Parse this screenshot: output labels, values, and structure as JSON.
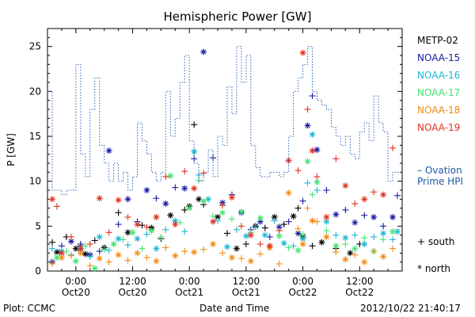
{
  "chart_data": {
    "type": "scatter",
    "title": "Hemispheric Power [GW]",
    "ylabel": "P [GW]",
    "xlabel": "Date and Time",
    "ylim": [
      0,
      27
    ],
    "yticks": [
      0,
      5,
      10,
      15,
      20,
      25
    ],
    "xlim_hours": [
      -6,
      69
    ],
    "xticks": [
      {
        "hour": 0,
        "time": "0:00",
        "date": "Oct20"
      },
      {
        "hour": 12,
        "time": "12:00",
        "date": "Oct20"
      },
      {
        "hour": 24,
        "time": "0:00",
        "date": "Oct21"
      },
      {
        "hour": 36,
        "time": "12:00",
        "date": "Oct21"
      },
      {
        "hour": 48,
        "time": "0:00",
        "date": "Oct22"
      },
      {
        "hour": 60,
        "time": "12:00",
        "date": "Oct22"
      }
    ],
    "series": [
      {
        "name": "METP-02",
        "color": "#000000",
        "points": [
          [
            -5,
            3.2
          ],
          [
            -4,
            2.1
          ],
          [
            -2,
            3.8
          ],
          [
            0,
            2.5
          ],
          [
            1,
            2.8
          ],
          [
            2,
            1.9
          ],
          [
            4,
            3.4
          ],
          [
            6,
            2.6
          ],
          [
            9,
            6.5
          ],
          [
            11,
            4.3
          ],
          [
            14,
            5.1
          ],
          [
            16,
            4.8
          ],
          [
            18,
            3.6
          ],
          [
            20,
            6.2
          ],
          [
            23,
            6.8
          ],
          [
            24,
            7.2
          ],
          [
            25,
            16.3
          ],
          [
            26,
            8.0
          ],
          [
            27,
            7.4
          ],
          [
            30,
            6.0
          ],
          [
            32,
            4.2
          ],
          [
            34,
            2.5
          ],
          [
            36,
            3.0
          ],
          [
            38,
            5.0
          ],
          [
            40,
            4.8
          ],
          [
            42,
            6.0
          ],
          [
            44,
            5.2
          ],
          [
            46,
            6.1
          ],
          [
            47,
            7.0
          ],
          [
            48,
            3.8
          ],
          [
            50,
            2.8
          ],
          [
            52,
            3.2
          ],
          [
            55,
            2.5
          ],
          [
            58,
            2.0
          ],
          [
            60,
            3.0
          ]
        ]
      },
      {
        "name": "NOAA-15",
        "color": "#1a1aa6",
        "points": [
          [
            -5,
            1.0
          ],
          [
            -3,
            2.8
          ],
          [
            -1,
            3.3
          ],
          [
            1,
            3.0
          ],
          [
            3,
            1.8
          ],
          [
            5,
            2.2
          ],
          [
            7,
            13.4
          ],
          [
            9,
            5.2
          ],
          [
            11,
            8.0
          ],
          [
            13,
            5.5
          ],
          [
            15,
            9.0
          ],
          [
            17,
            8.1
          ],
          [
            19,
            7.5
          ],
          [
            21,
            9.3
          ],
          [
            23,
            9.2
          ],
          [
            25,
            12.5
          ],
          [
            27,
            24.4
          ],
          [
            29,
            12.6
          ],
          [
            31,
            7.6
          ],
          [
            33,
            8.5
          ],
          [
            35,
            6.5
          ],
          [
            37,
            4.6
          ],
          [
            39,
            5.5
          ],
          [
            41,
            3.8
          ],
          [
            43,
            4.9
          ],
          [
            45,
            5.5
          ],
          [
            47,
            4.2
          ],
          [
            48,
            7.8
          ],
          [
            49,
            16.2
          ],
          [
            50,
            19.5
          ],
          [
            51,
            13.5
          ],
          [
            53,
            9.0
          ],
          [
            55,
            6.3
          ],
          [
            57,
            6.8
          ],
          [
            59,
            5.4
          ],
          [
            61,
            6.2
          ],
          [
            63,
            6.0
          ],
          [
            65,
            5.0
          ],
          [
            67,
            6.0
          ],
          [
            68,
            8.4
          ]
        ]
      },
      {
        "name": "NOAA-16",
        "color": "#19b7d6",
        "points": [
          [
            -5,
            2.5
          ],
          [
            -3,
            2.2
          ],
          [
            -1,
            1.8
          ],
          [
            1,
            2.4
          ],
          [
            3,
            1.6
          ],
          [
            5,
            3.8
          ],
          [
            7,
            2.3
          ],
          [
            9,
            3.6
          ],
          [
            11,
            2.9
          ],
          [
            13,
            3.6
          ],
          [
            15,
            4.1
          ],
          [
            17,
            2.5
          ],
          [
            19,
            4.6
          ],
          [
            21,
            5.6
          ],
          [
            23,
            4.4
          ],
          [
            25,
            13.3
          ],
          [
            26,
            10.7
          ],
          [
            28,
            8.0
          ],
          [
            30,
            5.6
          ],
          [
            32,
            2.7
          ],
          [
            34,
            4.6
          ],
          [
            36,
            3.9
          ],
          [
            38,
            4.9
          ],
          [
            40,
            4.0
          ],
          [
            42,
            5.6
          ],
          [
            44,
            3.1
          ],
          [
            46,
            2.8
          ],
          [
            48,
            3.6
          ],
          [
            49,
            9.8
          ],
          [
            50,
            15.2
          ],
          [
            51,
            9.0
          ],
          [
            53,
            5.5
          ],
          [
            55,
            4.0
          ],
          [
            57,
            3.7
          ],
          [
            59,
            4.0
          ],
          [
            61,
            3.0
          ],
          [
            63,
            3.8
          ],
          [
            65,
            4.2
          ],
          [
            67,
            3.5
          ],
          [
            68,
            4.4
          ]
        ]
      },
      {
        "name": "NOAA-17",
        "color": "#3ee56f",
        "points": [
          [
            -4,
            1.5
          ],
          [
            -2,
            2.2
          ],
          [
            0,
            1.1
          ],
          [
            2,
            2.8
          ],
          [
            4,
            0.3
          ],
          [
            6,
            2.4
          ],
          [
            8,
            3.0
          ],
          [
            10,
            3.5
          ],
          [
            12,
            4.3
          ],
          [
            14,
            2.5
          ],
          [
            16,
            4.5
          ],
          [
            18,
            3.8
          ],
          [
            20,
            10.6
          ],
          [
            22,
            5.4
          ],
          [
            24,
            7.0
          ],
          [
            26,
            10.1
          ],
          [
            27,
            7.8
          ],
          [
            29,
            6.1
          ],
          [
            31,
            6.5
          ],
          [
            33,
            5.8
          ],
          [
            35,
            6.6
          ],
          [
            37,
            4.3
          ],
          [
            39,
            5.9
          ],
          [
            41,
            2.8
          ],
          [
            43,
            3.9
          ],
          [
            45,
            2.6
          ],
          [
            47,
            2.3
          ],
          [
            48,
            4.1
          ],
          [
            49,
            12.2
          ],
          [
            50,
            8.5
          ],
          [
            51,
            9.9
          ],
          [
            53,
            4.5
          ],
          [
            55,
            2.8
          ],
          [
            57,
            3.0
          ],
          [
            59,
            2.5
          ],
          [
            61,
            3.7
          ],
          [
            63,
            2.2
          ],
          [
            65,
            3.5
          ],
          [
            67,
            4.4
          ]
        ]
      },
      {
        "name": "NOAA-18",
        "color": "#f28a12",
        "points": [
          [
            -5,
            0.8
          ],
          [
            -3,
            1.5
          ],
          [
            -1,
            1.7
          ],
          [
            1,
            2.0
          ],
          [
            3,
            0.6
          ],
          [
            5,
            1.4
          ],
          [
            7,
            1.0
          ],
          [
            9,
            1.8
          ],
          [
            11,
            1.2
          ],
          [
            13,
            2.0
          ],
          [
            15,
            1.5
          ],
          [
            17,
            1.1
          ],
          [
            19,
            2.6
          ],
          [
            21,
            1.7
          ],
          [
            23,
            2.2
          ],
          [
            25,
            2.1
          ],
          [
            27,
            2.4
          ],
          [
            29,
            3.0
          ],
          [
            31,
            2.0
          ],
          [
            33,
            1.5
          ],
          [
            35,
            1.4
          ],
          [
            37,
            1.1
          ],
          [
            39,
            1.9
          ],
          [
            41,
            2.6
          ],
          [
            43,
            0.8
          ],
          [
            45,
            8.7
          ],
          [
            47,
            4.7
          ],
          [
            48,
            3.0
          ],
          [
            49,
            7.0
          ],
          [
            50,
            5.6
          ],
          [
            51,
            5.5
          ],
          [
            53,
            3.8
          ],
          [
            55,
            2.1
          ],
          [
            57,
            1.3
          ],
          [
            59,
            1.8
          ],
          [
            61,
            1.0
          ],
          [
            63,
            2.2
          ],
          [
            65,
            1.6
          ],
          [
            67,
            2.5
          ]
        ]
      },
      {
        "name": "NOAA-19",
        "color": "#e0301e",
        "points": [
          [
            -5,
            8.0
          ],
          [
            -4,
            7.2
          ],
          [
            -3,
            2.0
          ],
          [
            -1,
            3.8
          ],
          [
            1,
            2.5
          ],
          [
            3,
            3.0
          ],
          [
            5,
            8.1
          ],
          [
            7,
            4.3
          ],
          [
            9,
            7.9
          ],
          [
            11,
            6.0
          ],
          [
            13,
            5.2
          ],
          [
            15,
            4.9
          ],
          [
            17,
            6.0
          ],
          [
            19,
            10.5
          ],
          [
            21,
            5.2
          ],
          [
            23,
            11.1
          ],
          [
            25,
            9.2
          ],
          [
            27,
            10.9
          ],
          [
            29,
            5.5
          ],
          [
            31,
            7.3
          ],
          [
            33,
            8.2
          ],
          [
            35,
            5.0
          ],
          [
            37,
            4.0
          ],
          [
            39,
            3.0
          ],
          [
            41,
            2.8
          ],
          [
            43,
            4.5
          ],
          [
            45,
            12.3
          ],
          [
            47,
            11.2
          ],
          [
            48,
            24.3
          ],
          [
            49,
            18.0
          ],
          [
            50,
            13.4
          ],
          [
            51,
            10.5
          ],
          [
            53,
            6.0
          ],
          [
            55,
            12.5
          ],
          [
            57,
            9.5
          ],
          [
            59,
            7.5
          ],
          [
            61,
            8.0
          ],
          [
            63,
            8.8
          ],
          [
            65,
            8.5
          ],
          [
            67,
            13.7
          ]
        ]
      },
      {
        "name": "Ovation Prime HPI",
        "color": "#2a62b8",
        "style": "step-dotted",
        "points": [
          [
            -6,
            20.0
          ],
          [
            -5,
            9.0
          ],
          [
            -3,
            8.5
          ],
          [
            -2,
            9.0
          ],
          [
            0,
            23.0
          ],
          [
            1,
            13.0
          ],
          [
            2,
            10.5
          ],
          [
            3,
            18.0
          ],
          [
            4,
            21.5
          ],
          [
            5,
            14.0
          ],
          [
            6,
            12.0
          ],
          [
            7,
            10.0
          ],
          [
            8,
            12.0
          ],
          [
            9,
            10.0
          ],
          [
            10,
            11.0
          ],
          [
            11,
            9.0
          ],
          [
            12,
            10.5
          ],
          [
            13,
            16.5
          ],
          [
            14,
            14.5
          ],
          [
            15,
            13.0
          ],
          [
            16,
            11.0
          ],
          [
            17,
            10.0
          ],
          [
            18,
            11.0
          ],
          [
            19,
            20.0
          ],
          [
            20,
            15.0
          ],
          [
            21,
            17.0
          ],
          [
            22,
            21.0
          ],
          [
            23,
            24.0
          ],
          [
            24,
            14.5
          ],
          [
            25,
            12.0
          ],
          [
            26,
            10.0
          ],
          [
            27,
            11.0
          ],
          [
            28,
            13.5
          ],
          [
            29,
            10.5
          ],
          [
            30,
            15.0
          ],
          [
            31,
            14.0
          ],
          [
            32,
            20.5
          ],
          [
            33,
            17.5
          ],
          [
            34,
            25.0
          ],
          [
            35,
            21.0
          ],
          [
            36,
            24.0
          ],
          [
            37,
            14.0
          ],
          [
            38,
            11.5
          ],
          [
            39,
            10.5
          ],
          [
            40,
            10.5
          ],
          [
            41,
            11.0
          ],
          [
            42,
            11.0
          ],
          [
            43,
            10.5
          ],
          [
            44,
            11.0
          ],
          [
            45,
            15.0
          ],
          [
            46,
            20.0
          ],
          [
            47,
            21.5
          ],
          [
            48,
            23.0
          ],
          [
            49,
            25.0
          ],
          [
            50,
            20.0
          ],
          [
            51,
            19.0
          ],
          [
            52,
            18.5
          ],
          [
            53,
            18.0
          ],
          [
            54,
            16.0
          ],
          [
            55,
            15.0
          ],
          [
            56,
            14.0
          ],
          [
            57,
            15.0
          ],
          [
            58,
            13.0
          ],
          [
            59,
            12.5
          ],
          [
            60,
            15.5
          ],
          [
            61,
            16.5
          ],
          [
            62,
            14.5
          ],
          [
            63,
            19.5
          ],
          [
            64,
            16.5
          ],
          [
            65,
            15.5
          ],
          [
            66,
            10.0
          ],
          [
            67,
            11.0
          ],
          [
            68,
            11.0
          ]
        ]
      }
    ],
    "legend": [
      "METP-02",
      "NOAA-15",
      "NOAA-16",
      "NOAA-17",
      "NOAA-18",
      "NOAA-19"
    ],
    "ovation_label": "Ovation Prime HPI",
    "ovation_dash": "–",
    "symbols": {
      "south": "+ south",
      "north": "* north"
    }
  },
  "footer": {
    "left": "Plot: CCMC",
    "center": "Date and Time",
    "right": "2012/10/22 21:40:17"
  }
}
